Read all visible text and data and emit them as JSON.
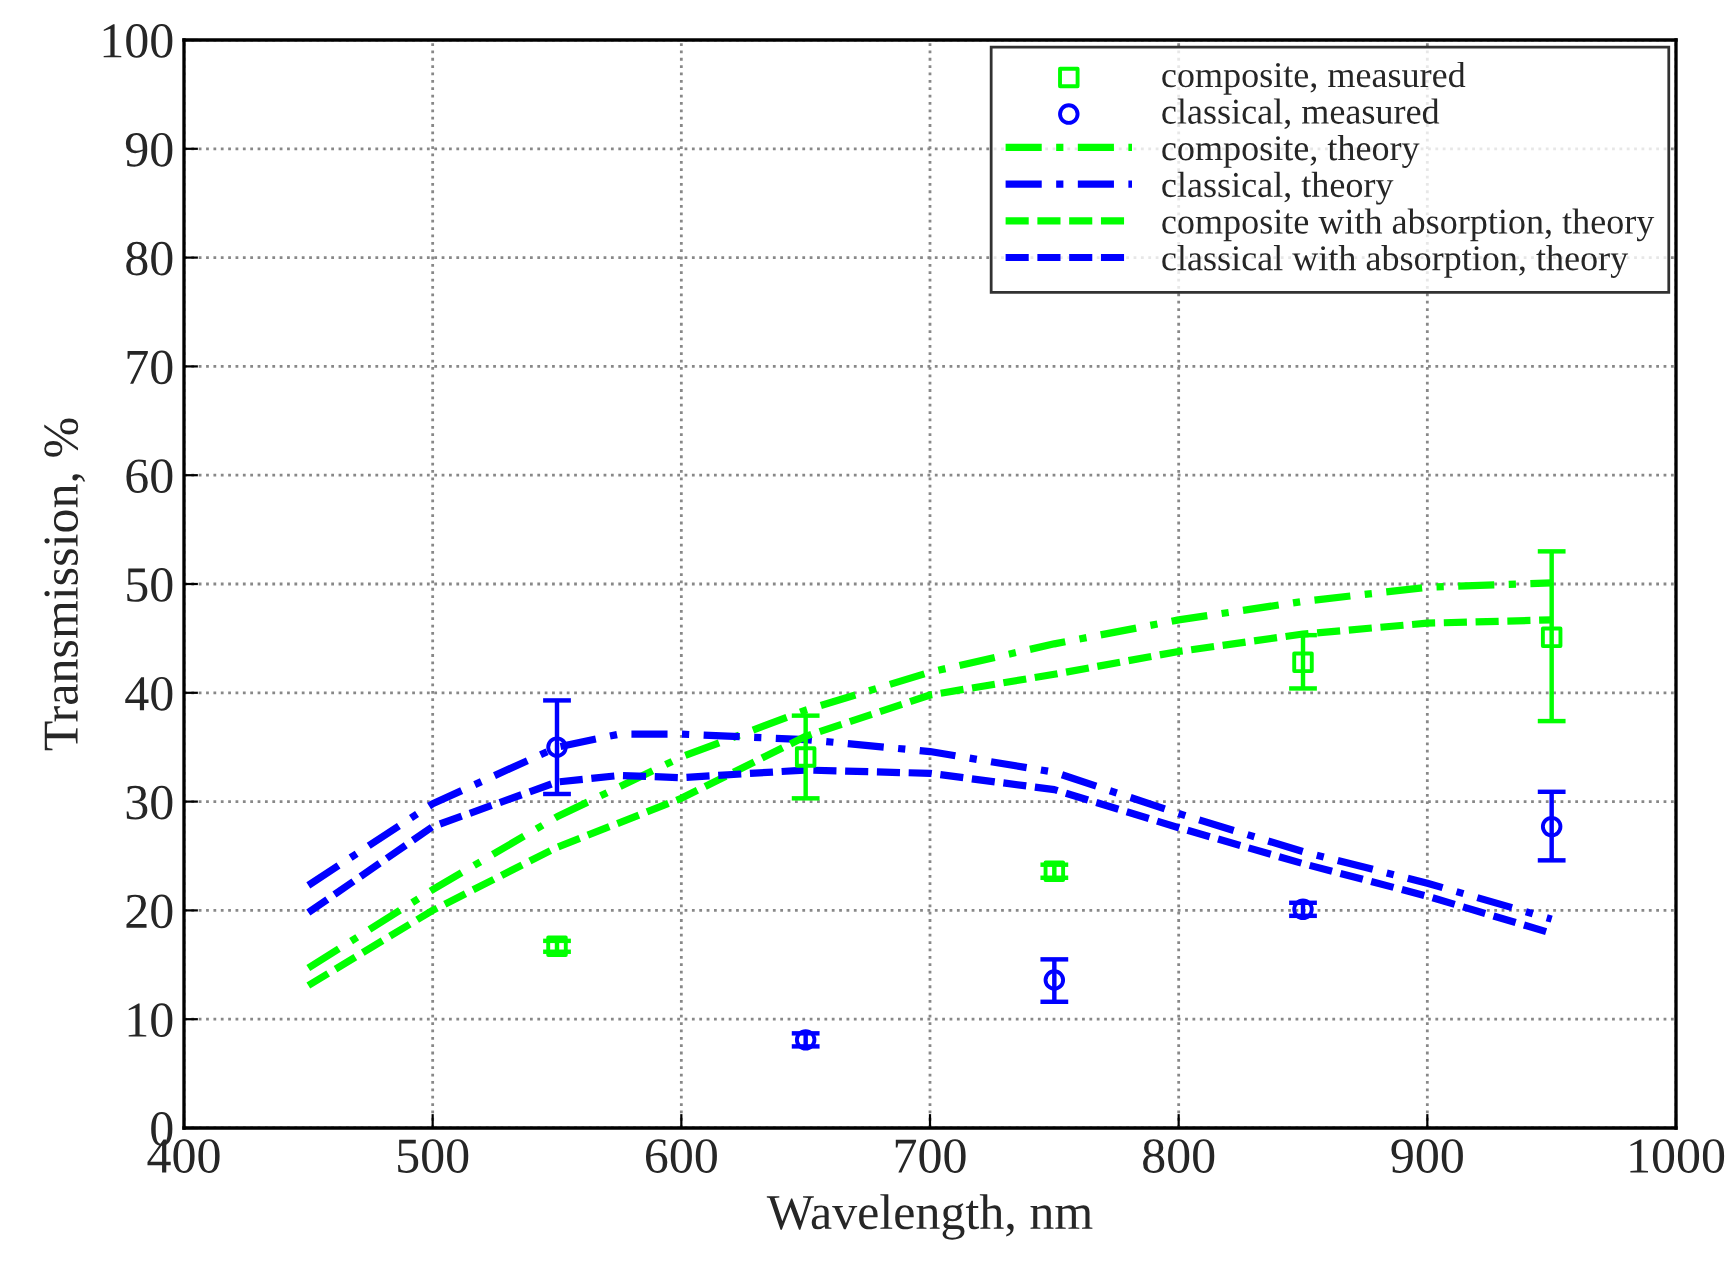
{
  "chart_data": {
    "type": "line",
    "xlabel": "Wavelength, nm",
    "ylabel": "Transmission, %",
    "xlim": [
      400,
      1000
    ],
    "xticks": [
      400,
      500,
      600,
      700,
      800,
      900,
      1000
    ],
    "ylim": [
      0,
      100
    ],
    "yticks": [
      0,
      10,
      20,
      30,
      40,
      50,
      60,
      70,
      80,
      90,
      100
    ],
    "grid": true,
    "legend": "top right",
    "series": [
      {
        "name": "composite, measured",
        "type": "scatter",
        "marker": "square",
        "color": "#00ff00",
        "x": [
          550,
          650,
          750,
          850,
          950
        ],
        "values": [
          16.7,
          34.1,
          23.6,
          42.8,
          45.1
        ],
        "errors": [
          0.5,
          [
            30.3,
            37.9
          ],
          0.6,
          [
            40.4,
            45.3
          ],
          [
            37.4,
            53.0
          ]
        ]
      },
      {
        "name": "classical, measured",
        "type": "scatter",
        "marker": "circle",
        "color": "#0000ff",
        "x": [
          550,
          650,
          750,
          850,
          950
        ],
        "values": [
          35.0,
          8.1,
          13.6,
          20.1,
          27.7
        ],
        "errors": [
          [
            30.7,
            39.3
          ],
          0.6,
          [
            11.6,
            15.5
          ],
          0.6,
          [
            24.6,
            30.9
          ]
        ]
      },
      {
        "name": "composite, theory",
        "line_style": "dashdot",
        "color": "#00ff00",
        "x": [
          450,
          500,
          550,
          600,
          650,
          700,
          750,
          800,
          850,
          900,
          950
        ],
        "values": [
          14.7,
          21.9,
          28.6,
          34.1,
          38.4,
          41.9,
          44.5,
          46.7,
          48.4,
          49.7,
          50.1
        ]
      },
      {
        "name": "classical, theory",
        "line_style": "dashdot",
        "color": "#0000ff",
        "x": [
          450,
          500,
          550,
          575,
          600,
          650,
          700,
          750,
          800,
          850,
          900,
          950
        ],
        "values": [
          22.3,
          29.8,
          35.0,
          36.2,
          36.2,
          35.7,
          34.6,
          32.7,
          28.9,
          25.4,
          22.5,
          19.2
        ]
      },
      {
        "name": "composite with absorption, theory",
        "line_style": "dashed",
        "color": "#00ff00",
        "x": [
          450,
          500,
          550,
          600,
          650,
          700,
          750,
          800,
          850,
          900,
          950
        ],
        "values": [
          13.1,
          20.0,
          25.8,
          30.3,
          36.0,
          39.8,
          41.7,
          43.8,
          45.4,
          46.4,
          46.7
        ]
      },
      {
        "name": "classical with absorption, theory",
        "line_style": "dashed",
        "color": "#0000ff",
        "x": [
          450,
          500,
          550,
          575,
          600,
          650,
          700,
          750,
          800,
          850,
          900,
          950
        ],
        "values": [
          19.8,
          27.7,
          31.8,
          32.4,
          32.2,
          32.9,
          32.6,
          31.1,
          27.6,
          24.3,
          21.3,
          17.9
        ]
      }
    ]
  }
}
